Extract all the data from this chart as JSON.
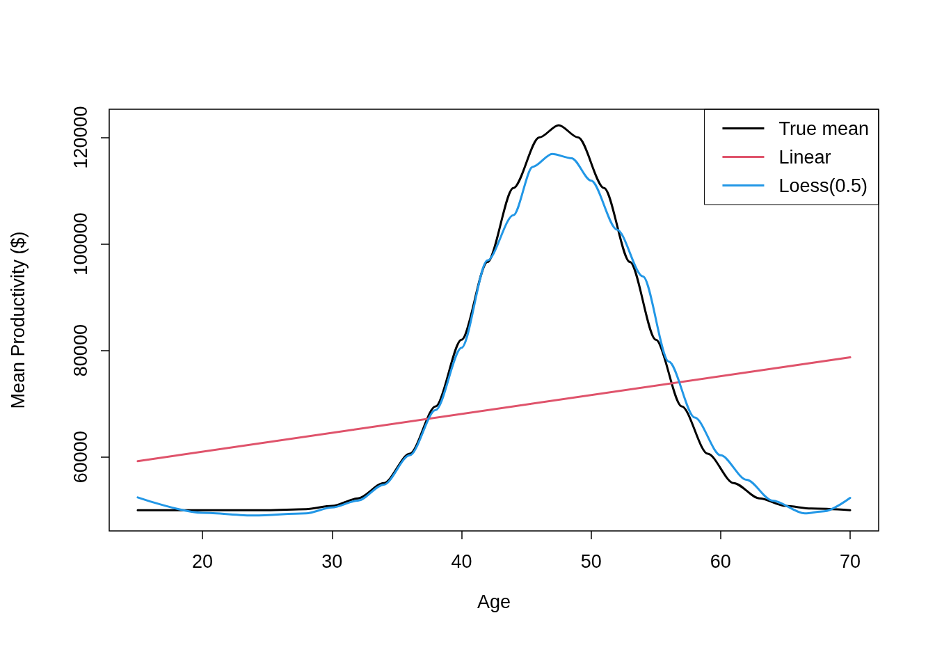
{
  "chart_data": {
    "type": "line",
    "xlabel": "Age",
    "ylabel": "Mean Productivity ($)",
    "xlim": [
      12.8,
      72.2
    ],
    "xticks": [
      20,
      30,
      40,
      50,
      60,
      70
    ],
    "ylim": [
      46100,
      125300
    ],
    "yticks": [
      60000,
      80000,
      100000,
      120000
    ],
    "grid": false,
    "legend": "top right",
    "marker": "none",
    "line_style": "solid",
    "series": [
      {
        "name": "True mean",
        "color": "#000000",
        "x": [
          15,
          20,
          25,
          28,
          30,
          32,
          34,
          36,
          38,
          40,
          42,
          44,
          46,
          47.5,
          49,
          51,
          53,
          55,
          57,
          59,
          61,
          63,
          65,
          67,
          70
        ],
        "values": [
          50000,
          50000,
          50000,
          50200,
          50800,
          52200,
          55100,
          60600,
          69500,
          82000,
          96600,
          110500,
          120000,
          122300,
          120000,
          110500,
          96600,
          82000,
          69500,
          60600,
          55100,
          52200,
          50800,
          50300,
          50000
        ]
      },
      {
        "name": "Linear",
        "color": "#df536b",
        "x": [
          15,
          70
        ],
        "values": [
          59200,
          78700
        ]
      },
      {
        "name": "Loess(0.5)",
        "color": "#2297e6",
        "x": [
          15,
          20,
          24,
          28,
          30,
          32,
          34,
          36,
          38,
          40,
          42,
          44,
          45.5,
          47,
          48.5,
          50,
          52,
          54,
          56,
          58,
          60,
          62,
          64,
          66.5,
          68,
          70
        ],
        "values": [
          52400,
          49500,
          49000,
          49400,
          50500,
          51800,
          54800,
          60300,
          68800,
          80500,
          96900,
          105400,
          114500,
          116900,
          116100,
          111900,
          102700,
          93900,
          77900,
          67400,
          60300,
          55700,
          51800,
          49400,
          49800,
          52300
        ]
      }
    ]
  }
}
